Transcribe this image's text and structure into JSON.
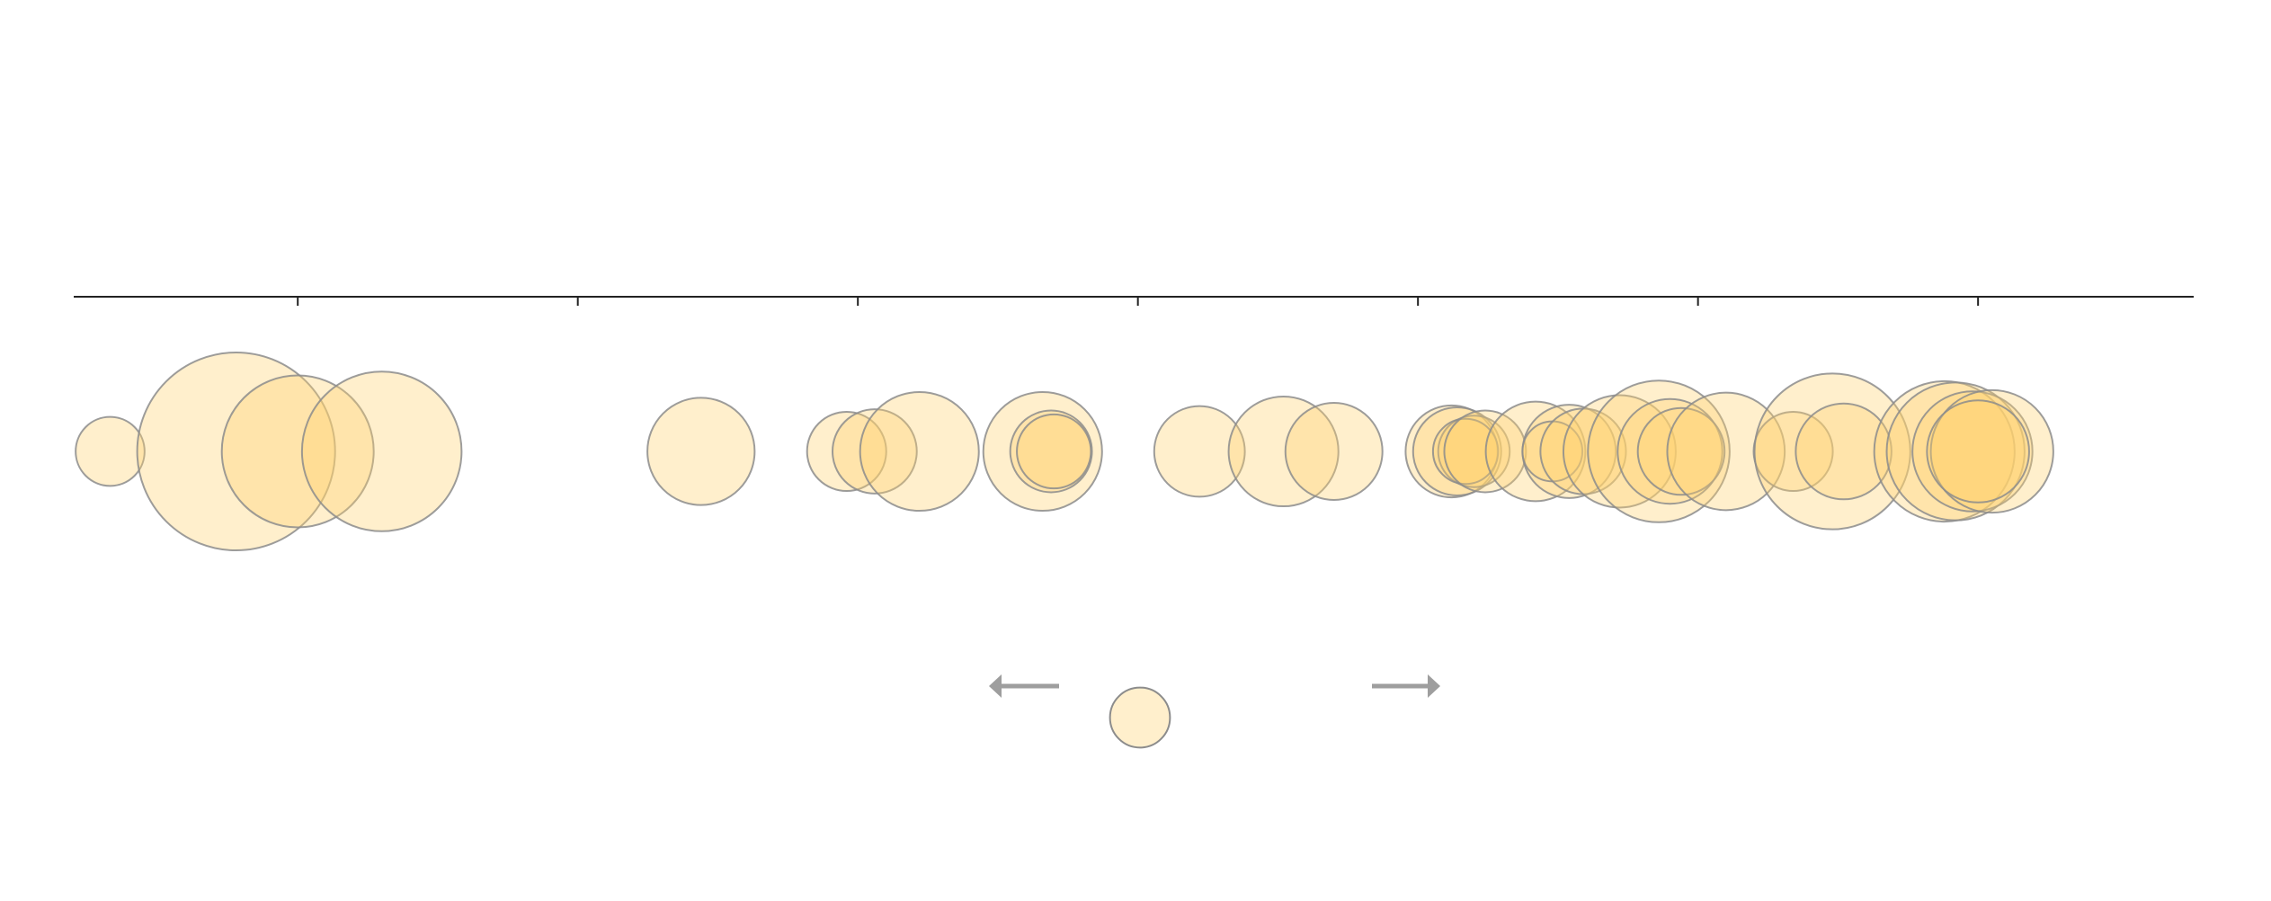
{
  "chart_data": {
    "type": "scatter",
    "title": "",
    "xlabel": "",
    "ylabel": "",
    "xlim": [
      -0.8,
      6.77
    ],
    "xticks": [
      0,
      1,
      2,
      3,
      4,
      5,
      6
    ],
    "tick_labels_shown": false,
    "grid": false,
    "legend": "bottom-center",
    "color": "#FFD26E",
    "stroke_color": "#8C8C8C",
    "points": [
      {
        "x": -0.67,
        "size": 0.54
      },
      {
        "x": -0.22,
        "size": 1.55
      },
      {
        "x": 0.0,
        "size": 1.19
      },
      {
        "x": 0.3,
        "size": 1.25
      },
      {
        "x": 1.44,
        "size": 0.84
      },
      {
        "x": 1.96,
        "size": 0.62
      },
      {
        "x": 2.06,
        "size": 0.66
      },
      {
        "x": 2.22,
        "size": 0.93
      },
      {
        "x": 2.66,
        "size": 0.93
      },
      {
        "x": 2.69,
        "size": 0.64
      },
      {
        "x": 2.7,
        "size": 0.58
      },
      {
        "x": 3.22,
        "size": 0.71
      },
      {
        "x": 3.52,
        "size": 0.86
      },
      {
        "x": 3.7,
        "size": 0.76
      },
      {
        "x": 4.12,
        "size": 0.72
      },
      {
        "x": 4.14,
        "size": 0.69
      },
      {
        "x": 4.2,
        "size": 0.56
      },
      {
        "x": 4.17,
        "size": 0.51
      },
      {
        "x": 4.24,
        "size": 0.64
      },
      {
        "x": 4.42,
        "size": 0.78
      },
      {
        "x": 4.54,
        "size": 0.73
      },
      {
        "x": 4.48,
        "size": 0.47
      },
      {
        "x": 4.59,
        "size": 0.67
      },
      {
        "x": 4.72,
        "size": 0.88
      },
      {
        "x": 4.86,
        "size": 1.11
      },
      {
        "x": 4.9,
        "size": 0.82
      },
      {
        "x": 4.94,
        "size": 0.68
      },
      {
        "x": 5.1,
        "size": 0.92
      },
      {
        "x": 5.34,
        "size": 0.62
      },
      {
        "x": 5.48,
        "size": 1.22
      },
      {
        "x": 5.52,
        "size": 0.75
      },
      {
        "x": 5.88,
        "size": 1.1
      },
      {
        "x": 5.92,
        "size": 1.08
      },
      {
        "x": 5.98,
        "size": 0.94
      },
      {
        "x": 6.05,
        "size": 0.96
      },
      {
        "x": 6.0,
        "size": 0.8
      }
    ],
    "legend_items": [
      {
        "size": 0.47
      }
    ],
    "arrows": [
      {
        "direction": "left"
      },
      {
        "direction": "right"
      }
    ]
  }
}
